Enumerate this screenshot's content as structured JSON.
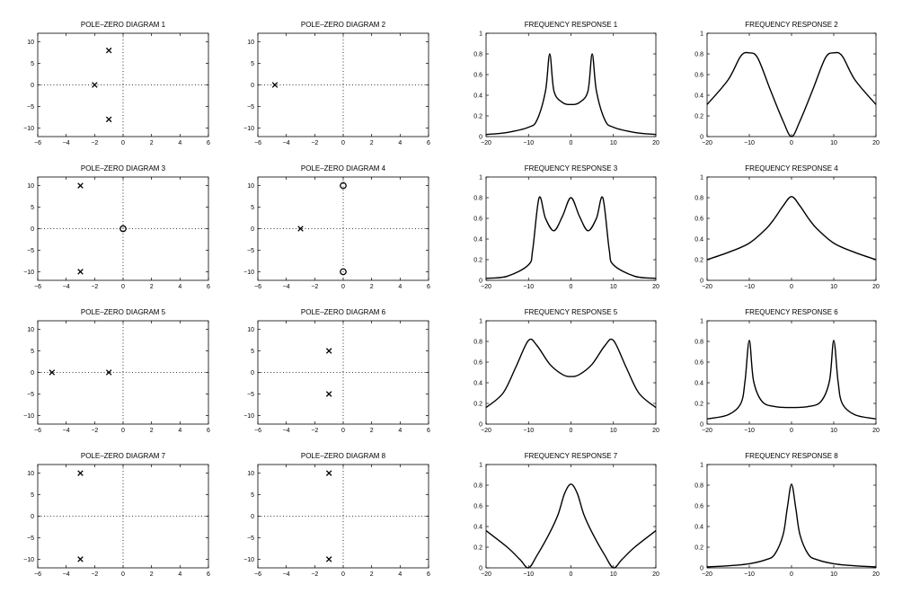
{
  "chart_data": [
    {
      "id": "pz1",
      "type": "scatter",
      "title": "POLE–ZERO DIAGRAM 1",
      "xlim": [
        -6,
        6
      ],
      "ylim": [
        -12,
        12
      ],
      "xticks": [
        "−6",
        "−4",
        "−2",
        "0",
        "2",
        "4",
        "6"
      ],
      "yticks": [
        "10",
        "5",
        "0",
        "−5",
        "−10"
      ],
      "poles": [
        [
          -1,
          8
        ],
        [
          -2,
          0
        ],
        [
          -1,
          -8
        ]
      ],
      "zeros": []
    },
    {
      "id": "pz2",
      "type": "scatter",
      "title": "POLE–ZERO DIAGRAM 2",
      "xlim": [
        -6,
        6
      ],
      "ylim": [
        -12,
        12
      ],
      "xticks": [
        "−6",
        "−4",
        "−2",
        "0",
        "2",
        "4",
        "6"
      ],
      "yticks": [
        "10",
        "5",
        "0",
        "−5",
        "−10"
      ],
      "poles": [
        [
          -4.8,
          0
        ]
      ],
      "zeros": []
    },
    {
      "id": "fr1",
      "type": "line",
      "title": "FREQUENCY RESPONSE 1",
      "xlim": [
        -20,
        20
      ],
      "ylim": [
        0,
        1
      ],
      "xticks": [
        "−20",
        "−10",
        "0",
        "10",
        "20"
      ],
      "yticks": [
        "0",
        "0.2",
        "0.4",
        "0.6",
        "0.8",
        "1"
      ],
      "x": [
        -20,
        -15,
        -10,
        -8,
        -6,
        -5,
        -4,
        -2,
        0,
        2,
        4,
        5,
        6,
        8,
        10,
        15,
        20
      ],
      "y": [
        0.02,
        0.04,
        0.09,
        0.16,
        0.44,
        0.8,
        0.44,
        0.33,
        0.31,
        0.33,
        0.44,
        0.8,
        0.44,
        0.16,
        0.09,
        0.04,
        0.02
      ]
    },
    {
      "id": "fr2",
      "type": "line",
      "title": "FREQUENCY RESPONSE 2",
      "xlim": [
        -20,
        20
      ],
      "ylim": [
        0,
        1
      ],
      "xticks": [
        "−20",
        "−10",
        "0",
        "10",
        "20"
      ],
      "yticks": [
        "0",
        "0.2",
        "0.4",
        "0.6",
        "0.8",
        "1"
      ],
      "x": [
        -20,
        -15,
        -12,
        -10,
        -8,
        -5,
        -2,
        0,
        2,
        5,
        8,
        10,
        12,
        15,
        20
      ],
      "y": [
        0.31,
        0.55,
        0.78,
        0.81,
        0.76,
        0.45,
        0.15,
        0.0,
        0.15,
        0.45,
        0.76,
        0.81,
        0.78,
        0.55,
        0.31
      ]
    },
    {
      "id": "pz3",
      "type": "scatter",
      "title": "POLE–ZERO DIAGRAM 3",
      "xlim": [
        -6,
        6
      ],
      "ylim": [
        -12,
        12
      ],
      "xticks": [
        "−6",
        "−4",
        "−2",
        "0",
        "2",
        "4",
        "6"
      ],
      "yticks": [
        "10",
        "5",
        "0",
        "−5",
        "−10"
      ],
      "poles": [
        [
          -3,
          10
        ],
        [
          -3,
          -10
        ]
      ],
      "zeros": [
        [
          0,
          0
        ]
      ]
    },
    {
      "id": "pz4",
      "type": "scatter",
      "title": "POLE–ZERO DIAGRAM 4",
      "xlim": [
        -6,
        6
      ],
      "ylim": [
        -12,
        12
      ],
      "xticks": [
        "−6",
        "−4",
        "−2",
        "0",
        "2",
        "4",
        "6"
      ],
      "yticks": [
        "10",
        "5",
        "0",
        "−5",
        "−10"
      ],
      "poles": [
        [
          -3,
          0
        ]
      ],
      "zeros": [
        [
          0,
          10
        ],
        [
          0,
          -10
        ]
      ]
    },
    {
      "id": "fr3",
      "type": "line",
      "title": "FREQUENCY RESPONSE 3",
      "xlim": [
        -20,
        20
      ],
      "ylim": [
        0,
        1
      ],
      "xticks": [
        "−20",
        "−10",
        "0",
        "10",
        "20"
      ],
      "yticks": [
        "0",
        "0.2",
        "0.4",
        "0.6",
        "0.8",
        "1"
      ],
      "x": [
        -20,
        -15,
        -10,
        -9,
        -7.5,
        -6,
        -4,
        -2,
        0,
        2,
        4,
        6,
        7.5,
        9,
        10,
        15,
        20
      ],
      "y": [
        0.02,
        0.04,
        0.15,
        0.3,
        0.8,
        0.6,
        0.48,
        0.62,
        0.8,
        0.62,
        0.48,
        0.6,
        0.8,
        0.3,
        0.15,
        0.04,
        0.02
      ]
    },
    {
      "id": "fr4",
      "type": "line",
      "title": "FREQUENCY RESPONSE 4",
      "xlim": [
        -20,
        20
      ],
      "ylim": [
        0,
        1
      ],
      "xticks": [
        "−20",
        "−10",
        "0",
        "10",
        "20"
      ],
      "yticks": [
        "0",
        "0.2",
        "0.4",
        "0.6",
        "0.8",
        "1"
      ],
      "x": [
        -20,
        -15,
        -10,
        -6,
        -4,
        -2,
        0,
        2,
        4,
        6,
        10,
        15,
        20
      ],
      "y": [
        0.2,
        0.27,
        0.36,
        0.5,
        0.6,
        0.72,
        0.81,
        0.72,
        0.6,
        0.5,
        0.36,
        0.27,
        0.2
      ]
    },
    {
      "id": "pz5",
      "type": "scatter",
      "title": "POLE–ZERO DIAGRAM 5",
      "xlim": [
        -6,
        6
      ],
      "ylim": [
        -12,
        12
      ],
      "xticks": [
        "−6",
        "−4",
        "−2",
        "0",
        "2",
        "4",
        "6"
      ],
      "yticks": [
        "10",
        "5",
        "0",
        "−5",
        "−10"
      ],
      "poles": [
        [
          -5,
          0
        ],
        [
          -1,
          0
        ]
      ],
      "zeros": []
    },
    {
      "id": "pz6",
      "type": "scatter",
      "title": "POLE–ZERO DIAGRAM 6",
      "xlim": [
        -6,
        6
      ],
      "ylim": [
        -12,
        12
      ],
      "xticks": [
        "−6",
        "−4",
        "−2",
        "0",
        "2",
        "4",
        "6"
      ],
      "yticks": [
        "10",
        "5",
        "0",
        "−5",
        "−10"
      ],
      "poles": [
        [
          -1,
          5
        ],
        [
          -1,
          -5
        ]
      ],
      "zeros": []
    },
    {
      "id": "fr5",
      "type": "line",
      "title": "FREQUENCY RESPONSE 5",
      "xlim": [
        -20,
        20
      ],
      "ylim": [
        0,
        1
      ],
      "xticks": [
        "−20",
        "−10",
        "0",
        "10",
        "20"
      ],
      "yticks": [
        "0",
        "0.2",
        "0.4",
        "0.6",
        "0.8",
        "1"
      ],
      "x": [
        -20,
        -16,
        -13,
        -10,
        -8,
        -5,
        -2,
        0,
        2,
        5,
        8,
        10,
        13,
        16,
        20
      ],
      "y": [
        0.16,
        0.3,
        0.55,
        0.81,
        0.76,
        0.58,
        0.48,
        0.46,
        0.48,
        0.58,
        0.76,
        0.81,
        0.55,
        0.3,
        0.16
      ]
    },
    {
      "id": "fr6",
      "type": "line",
      "title": "FREQUENCY RESPONSE 6",
      "xlim": [
        -20,
        20
      ],
      "ylim": [
        0,
        1
      ],
      "xticks": [
        "−20",
        "−10",
        "0",
        "10",
        "20"
      ],
      "yticks": [
        "0",
        "0.2",
        "0.4",
        "0.6",
        "0.8",
        "1"
      ],
      "x": [
        -20,
        -15,
        -12,
        -11,
        -10,
        -9,
        -7,
        -4,
        0,
        4,
        7,
        9,
        10,
        11,
        12,
        15,
        20
      ],
      "y": [
        0.05,
        0.09,
        0.2,
        0.42,
        0.81,
        0.42,
        0.22,
        0.17,
        0.16,
        0.17,
        0.22,
        0.42,
        0.81,
        0.42,
        0.2,
        0.09,
        0.05
      ]
    },
    {
      "id": "pz7",
      "type": "scatter",
      "title": "POLE–ZERO DIAGRAM 7",
      "xlim": [
        -6,
        6
      ],
      "ylim": [
        -12,
        12
      ],
      "xticks": [
        "−6",
        "−4",
        "−2",
        "0",
        "2",
        "4",
        "6"
      ],
      "yticks": [
        "10",
        "5",
        "0",
        "−5",
        "−10"
      ],
      "poles": [
        [
          -3,
          10
        ],
        [
          -3,
          -10
        ]
      ],
      "zeros": []
    },
    {
      "id": "pz8",
      "type": "scatter",
      "title": "POLE–ZERO DIAGRAM 8",
      "xlim": [
        -6,
        6
      ],
      "ylim": [
        -12,
        12
      ],
      "xticks": [
        "−6",
        "−4",
        "−2",
        "0",
        "2",
        "4",
        "6"
      ],
      "yticks": [
        "10",
        "5",
        "0",
        "−5",
        "−10"
      ],
      "poles": [
        [
          -1,
          10
        ],
        [
          -1,
          -10
        ]
      ],
      "zeros": []
    },
    {
      "id": "fr7",
      "type": "line",
      "title": "FREQUENCY RESPONSE 7",
      "xlim": [
        -20,
        20
      ],
      "ylim": [
        0,
        1
      ],
      "xticks": [
        "−20",
        "−10",
        "0",
        "10",
        "20"
      ],
      "yticks": [
        "0",
        "0.2",
        "0.4",
        "0.6",
        "0.8",
        "1"
      ],
      "x": [
        -20,
        -15,
        -12,
        -10,
        -8,
        -5,
        -3,
        -1.5,
        0,
        1.5,
        3,
        5,
        8,
        10,
        12,
        15,
        20
      ],
      "y": [
        0.36,
        0.2,
        0.08,
        0.0,
        0.12,
        0.34,
        0.52,
        0.72,
        0.81,
        0.72,
        0.52,
        0.34,
        0.12,
        0.0,
        0.08,
        0.2,
        0.36
      ]
    },
    {
      "id": "fr8",
      "type": "line",
      "title": "FREQUENCY RESPONSE 8",
      "xlim": [
        -20,
        20
      ],
      "ylim": [
        0,
        1
      ],
      "xticks": [
        "−20",
        "−10",
        "0",
        "10",
        "20"
      ],
      "yticks": [
        "0",
        "0.2",
        "0.4",
        "0.6",
        "0.8",
        "1"
      ],
      "x": [
        -20,
        -15,
        -10,
        -6,
        -4,
        -2,
        -1,
        0,
        1,
        2,
        4,
        6,
        10,
        15,
        20
      ],
      "y": [
        0.01,
        0.02,
        0.04,
        0.08,
        0.13,
        0.32,
        0.58,
        0.81,
        0.58,
        0.32,
        0.13,
        0.08,
        0.04,
        0.02,
        0.01
      ]
    }
  ]
}
